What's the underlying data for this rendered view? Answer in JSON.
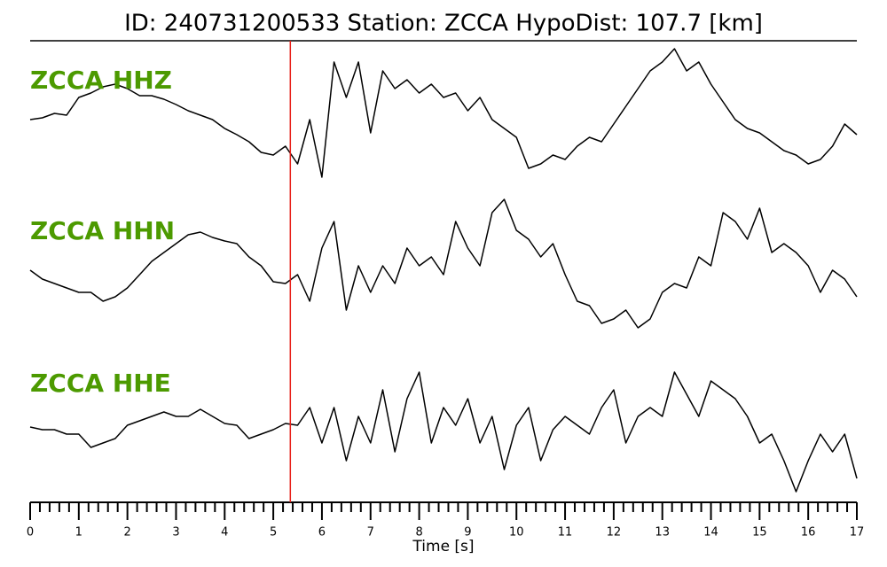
{
  "chart_data": {
    "type": "line",
    "title": "ID: 240731200533   Station: ZCCA   HypoDist:   107.7 [km]",
    "xlabel": "Time [s]",
    "x": [
      0,
      0.25,
      0.5,
      0.75,
      1,
      1.25,
      1.5,
      1.75,
      2,
      2.25,
      2.5,
      2.75,
      3,
      3.25,
      3.5,
      3.75,
      4,
      4.25,
      4.5,
      4.75,
      5,
      5.25,
      5.5,
      5.75,
      6,
      6.25,
      6.5,
      6.75,
      7,
      7.25,
      7.5,
      7.75,
      8,
      8.25,
      8.5,
      8.75,
      9,
      9.25,
      9.5,
      9.75,
      10,
      10.25,
      10.5,
      10.75,
      11,
      11.25,
      11.5,
      11.75,
      12,
      12.25,
      12.5,
      12.75,
      13,
      13.25,
      13.5,
      13.75,
      14,
      14.25,
      14.5,
      14.75,
      15,
      15.25,
      15.5,
      15.75,
      16,
      16.25,
      16.5,
      16.75,
      17
    ],
    "series": [
      {
        "name": "ZCCA HHZ",
        "color": "#000000",
        "values": [
          -1,
          1,
          6,
          4,
          24,
          29,
          36,
          39,
          34,
          26,
          26,
          22,
          16,
          9,
          4,
          -1,
          -11,
          -18,
          -26,
          -38,
          -41,
          -31,
          -51,
          -1,
          -66,
          64,
          24,
          64,
          -16,
          54,
          34,
          44,
          29,
          39,
          24,
          29,
          9,
          24,
          -1,
          -11,
          -21,
          -56,
          -51,
          -41,
          -46,
          -31,
          -21,
          -26,
          -6,
          14,
          34,
          54,
          64,
          79,
          54,
          64,
          39,
          19,
          -1,
          -11,
          -16,
          -26,
          -36,
          -41,
          -51,
          -46,
          -31,
          -6,
          -18
        ]
      },
      {
        "name": "ZCCA HHN",
        "color": "#000000",
        "values": [
          -1,
          -11,
          -16,
          -21,
          -26,
          -26,
          -36,
          -31,
          -21,
          -6,
          9,
          19,
          29,
          39,
          42,
          36,
          32,
          29,
          14,
          4,
          -14,
          -16,
          -6,
          -36,
          24,
          54,
          -46,
          4,
          -26,
          4,
          -16,
          24,
          4,
          14,
          -6,
          54,
          24,
          4,
          64,
          79,
          44,
          34,
          14,
          29,
          -6,
          -36,
          -41,
          -61,
          -56,
          -46,
          -66,
          -56,
          -26,
          -16,
          -21,
          14,
          4,
          64,
          54,
          34,
          69,
          19,
          29,
          19,
          4,
          -26,
          -1,
          -11,
          -31
        ]
      },
      {
        "name": "ZCCA HHE",
        "color": "#000000",
        "values": [
          -6,
          -9,
          -9,
          -14,
          -14,
          -29,
          -24,
          -19,
          -4,
          1,
          6,
          11,
          6,
          6,
          14,
          6,
          -2,
          -4,
          -19,
          -14,
          -9,
          -2,
          -4,
          16,
          -24,
          16,
          -44,
          6,
          -24,
          36,
          -34,
          26,
          56,
          -24,
          16,
          -4,
          26,
          -24,
          6,
          -54,
          -4,
          16,
          -44,
          -9,
          6,
          -4,
          -14,
          16,
          36,
          -24,
          6,
          16,
          6,
          56,
          31,
          6,
          46,
          36,
          26,
          6,
          -24,
          -14,
          -44,
          -79,
          -44,
          -14,
          -34,
          -14,
          -64
        ]
      }
    ],
    "label_color": "#4c9a00",
    "xlim": [
      0,
      17
    ],
    "xticks": [
      0,
      1,
      2,
      3,
      4,
      5,
      6,
      7,
      8,
      9,
      10,
      11,
      12,
      13,
      14,
      15,
      16,
      17
    ],
    "minor_ticks": 5,
    "ylim": [
      -88,
      88
    ],
    "marker": {
      "x": 5.35,
      "color": "#e8201a"
    }
  }
}
